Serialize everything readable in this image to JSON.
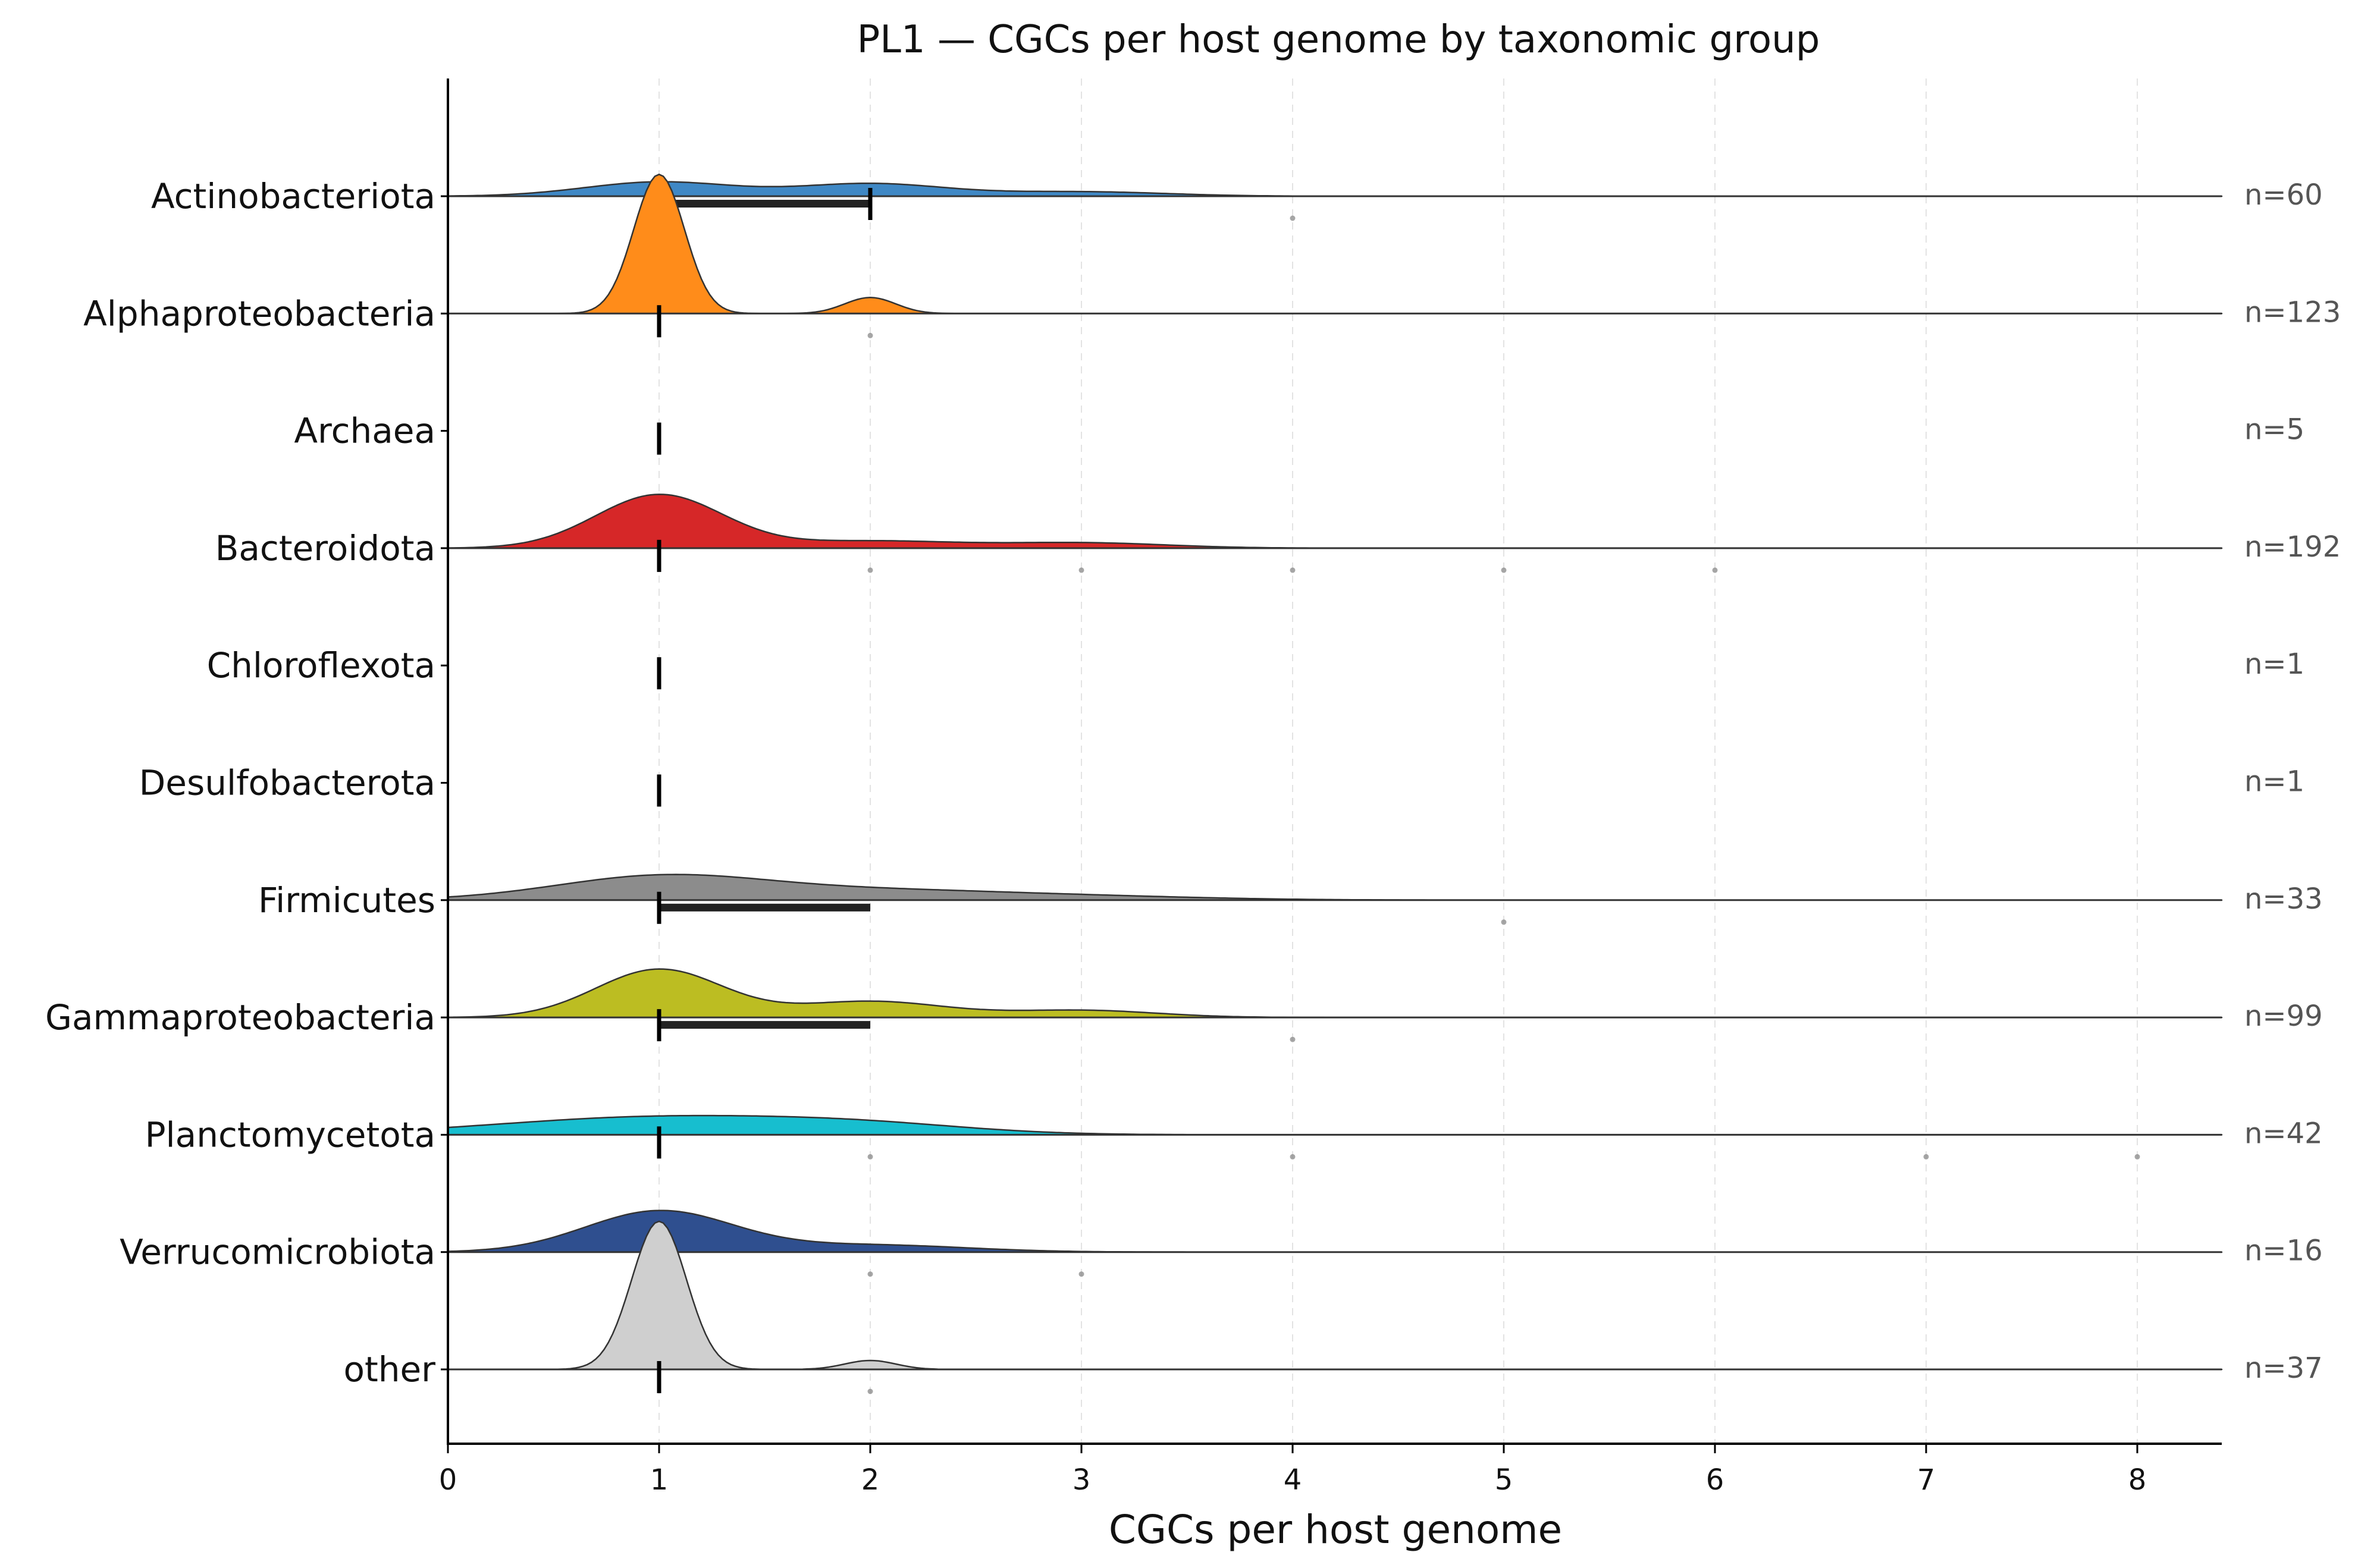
{
  "chart_data": {
    "type": "ridgeline",
    "title": "PL1 — CGCs per host genome by taxonomic group",
    "xlabel": "CGCs per host genome",
    "ylabel": "",
    "xlim": [
      0,
      8.4
    ],
    "xticks": [
      0,
      1,
      2,
      3,
      4,
      5,
      6,
      7,
      8
    ],
    "grid": "x-dashed",
    "groups": [
      {
        "name": "Actinobacteriota",
        "n_label": "n=60",
        "color": "#3f88c5",
        "median": 2,
        "q1": 1,
        "q3": 2,
        "peaks": [
          [
            1.0,
            0.08,
            0.35
          ],
          [
            2.0,
            0.07,
            0.35
          ],
          [
            3.0,
            0.025,
            0.4
          ]
        ],
        "outliers": [
          4
        ]
      },
      {
        "name": "Alphaproteobacteria",
        "n_label": "n=123",
        "color": "#ff8c1a",
        "median": 1,
        "q1": 1,
        "q3": 1,
        "peaks": [
          [
            1.0,
            0.78,
            0.12
          ],
          [
            2.0,
            0.09,
            0.12
          ]
        ],
        "outliers": [
          2
        ]
      },
      {
        "name": "Archaea",
        "n_label": "n=5",
        "color": "#2ca02c",
        "median": 1,
        "q1": 1,
        "q3": 1,
        "peaks": [],
        "outliers": []
      },
      {
        "name": "Bacteroidota",
        "n_label": "n=192",
        "color": "#d62728",
        "median": 1,
        "q1": 1,
        "q3": 1,
        "peaks": [
          [
            1.0,
            0.3,
            0.3
          ],
          [
            2.0,
            0.04,
            0.4
          ],
          [
            3.0,
            0.03,
            0.4
          ]
        ],
        "outliers": [
          2,
          3,
          4,
          5,
          6
        ]
      },
      {
        "name": "Chloroflexota",
        "n_label": "n=1",
        "color": "#9467bd",
        "median": 1,
        "q1": 1,
        "q3": 1,
        "peaks": [],
        "outliers": []
      },
      {
        "name": "Desulfobacterota",
        "n_label": "n=1",
        "color": "#8c564b",
        "median": 1,
        "q1": 1,
        "q3": 1,
        "peaks": [],
        "outliers": []
      },
      {
        "name": "Firmicutes",
        "n_label": "n=33",
        "color": "#8c8c8c",
        "median": 1,
        "q1": 1,
        "q3": 2,
        "peaks": [
          [
            1.0,
            0.13,
            0.5
          ],
          [
            2.0,
            0.05,
            0.6
          ],
          [
            3.0,
            0.02,
            0.6
          ]
        ],
        "outliers": [
          5
        ]
      },
      {
        "name": "Gammaproteobacteria",
        "n_label": "n=99",
        "color": "#bcbd22",
        "median": 1,
        "q1": 1,
        "q3": 2,
        "peaks": [
          [
            1.0,
            0.27,
            0.3
          ],
          [
            2.0,
            0.09,
            0.35
          ],
          [
            3.0,
            0.04,
            0.35
          ]
        ],
        "outliers": [
          4
        ]
      },
      {
        "name": "Planctomycetota",
        "n_label": "n=42",
        "color": "#17becf",
        "median": 1,
        "q1": 1,
        "q3": 1,
        "peaks": [
          [
            1.0,
            0.1,
            0.75
          ],
          [
            2.0,
            0.04,
            0.5
          ]
        ],
        "outliers": [
          2,
          4,
          7,
          8
        ]
      },
      {
        "name": "Verrucomicrobiota",
        "n_label": "n=16",
        "color": "#2f4f8f",
        "median": 1,
        "q1": 1,
        "q3": 1,
        "peaks": [
          [
            1.0,
            0.23,
            0.35
          ],
          [
            2.0,
            0.04,
            0.45
          ]
        ],
        "outliers": [
          2,
          3
        ]
      },
      {
        "name": "other",
        "n_label": "n=37",
        "color": "#cfcfcf",
        "median": 1,
        "q1": 1,
        "q3": 1,
        "peaks": [
          [
            1.0,
            0.83,
            0.13
          ],
          [
            2.0,
            0.05,
            0.12
          ]
        ],
        "outliers": [
          2
        ]
      }
    ]
  }
}
